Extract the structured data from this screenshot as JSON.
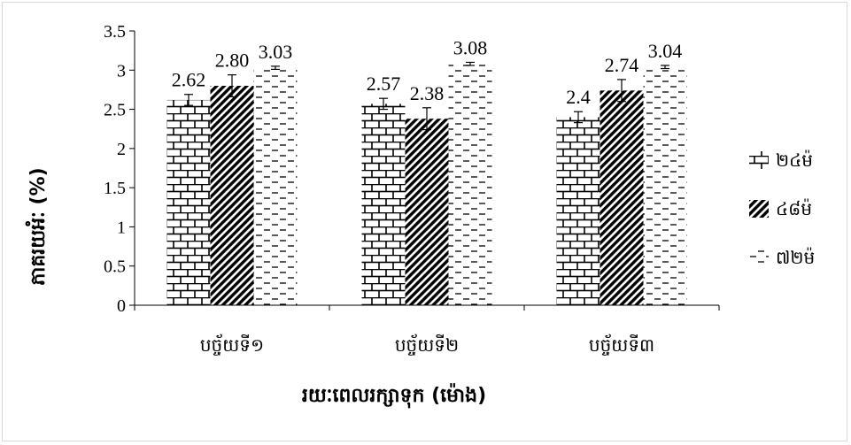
{
  "chart_data": {
    "type": "bar",
    "xlabel": "រយៈពេលរក្សាទុក (ម៉ោង)",
    "ylabel": "ភាគរយអំៈ (%)",
    "categories": [
      "បច្ច័យទី១",
      "បច្ច័យទី២",
      "បច្ច័យទី៣"
    ],
    "ylim": [
      0,
      3.5
    ],
    "yticks": [
      "0",
      "0.5",
      "1",
      "1.5",
      "2",
      "2.5",
      "3",
      "3.5"
    ],
    "ytick_values": [
      0,
      0.5,
      1,
      1.5,
      2,
      2.5,
      3,
      3.5
    ],
    "grid": false,
    "legend_position": "right",
    "series": [
      {
        "name": "២៤ម៉",
        "pattern": "brick",
        "values": [
          2.62,
          2.57,
          2.4
        ],
        "errors": [
          0.07,
          0.07,
          0.07
        ],
        "labels": [
          "2.62",
          "2.57",
          "2.4"
        ]
      },
      {
        "name": "៤៨ម៉",
        "pattern": "diagonal",
        "values": [
          2.8,
          2.38,
          2.74
        ],
        "errors": [
          0.14,
          0.14,
          0.14
        ],
        "labels": [
          "2.80",
          "2.38",
          "2.74"
        ]
      },
      {
        "name": "៧២ម៉",
        "pattern": "dashed",
        "values": [
          3.03,
          3.08,
          3.04
        ],
        "errors": [
          0.02,
          0.02,
          0.02
        ],
        "labels": [
          "3.03",
          "3.08",
          "3.04"
        ]
      }
    ]
  }
}
